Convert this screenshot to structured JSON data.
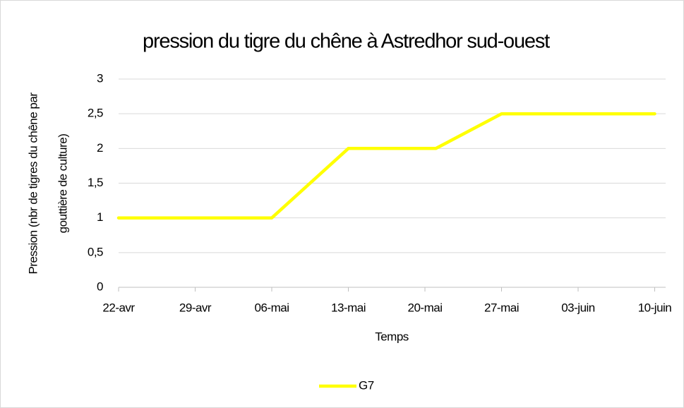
{
  "chart_data": {
    "type": "line",
    "title": "pression du tigre du chêne à Astredhor sud-ouest",
    "x_label": "Temps",
    "y_label": [
      "Pression (nbr de tigres du chêne par",
      "gouttière de culture)"
    ],
    "x": [
      "04-22",
      "05-06",
      "05-13",
      "05-21",
      "05-27",
      "06-10"
    ],
    "series": [
      {
        "name": "G7",
        "color": "#ffff00",
        "values": [
          1,
          1,
          2,
          2,
          2.5,
          2.5
        ]
      }
    ],
    "xlim": [
      "04-22",
      "06-11"
    ],
    "xticks": [
      {
        "value": "04-22",
        "label": "22-avr"
      },
      {
        "value": "04-29",
        "label": "29-avr"
      },
      {
        "value": "05-06",
        "label": "06-mai"
      },
      {
        "value": "05-13",
        "label": "13-mai"
      },
      {
        "value": "05-20",
        "label": "20-mai"
      },
      {
        "value": "05-27",
        "label": "27-mai"
      },
      {
        "value": "06-03",
        "label": "03-juin"
      },
      {
        "value": "06-10",
        "label": "10-juin"
      }
    ],
    "ylim": [
      0,
      3
    ],
    "yticks": [
      0,
      {
        "value": 0.5,
        "label": "0,5"
      },
      1,
      {
        "value": 1.5,
        "label": "1,5"
      },
      2,
      {
        "value": 2.5,
        "label": "2,5"
      },
      3
    ],
    "grid": true,
    "legend": "bottom"
  }
}
